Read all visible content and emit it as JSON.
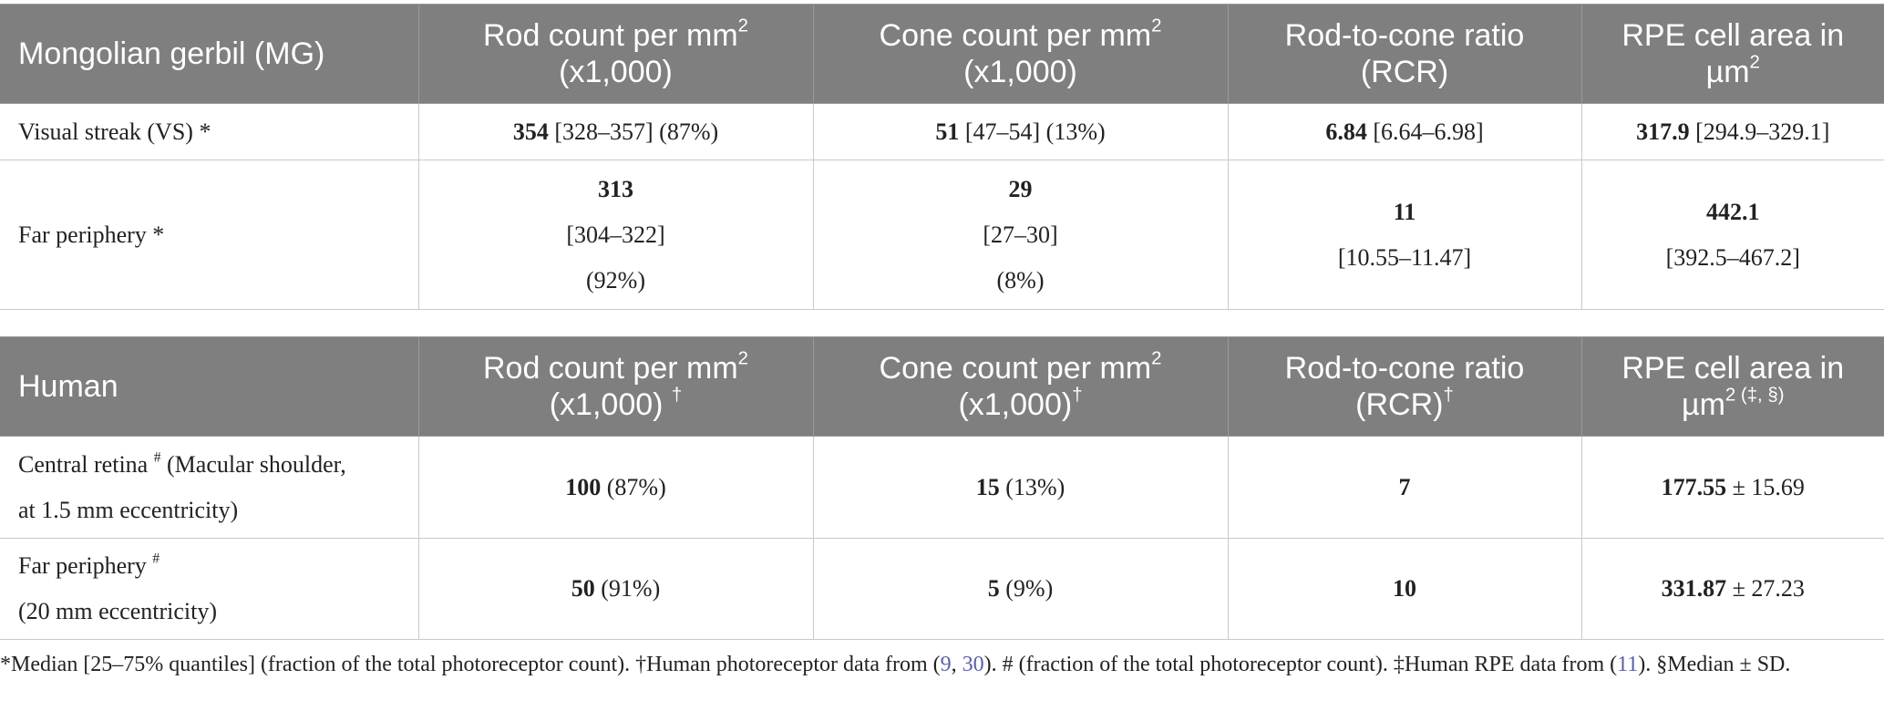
{
  "tables": [
    {
      "rows": [
        {
          "cells": [
            [
              [
                {
                  "text": "Mongolian gerbil (MG)"
                }
              ]
            ],
            [
              [
                {
                  "text": "Rod count per mm"
                },
                {
                  "text": "2",
                  "style": "sup"
                }
              ],
              [
                {
                  "text": "(x1,000)"
                }
              ]
            ],
            [
              [
                {
                  "text": "Cone count per mm"
                },
                {
                  "text": "2",
                  "style": "sup"
                }
              ],
              [
                {
                  "text": "(x1,000)"
                }
              ]
            ],
            [
              [
                {
                  "text": "Rod-to-cone ratio"
                }
              ],
              [
                {
                  "text": "(RCR)"
                }
              ]
            ],
            [
              [
                {
                  "text": "RPE cell area in"
                }
              ],
              [
                {
                  "text": "µm"
                },
                {
                  "text": "2",
                  "style": "sup"
                }
              ]
            ]
          ]
        },
        {
          "cells": [
            [
              [
                {
                  "text": "Visual streak (VS) *"
                }
              ]
            ],
            [
              [
                {
                  "text": "354",
                  "style": "bold"
                },
                {
                  "text": " [328–357] (87%)"
                }
              ]
            ],
            [
              [
                {
                  "text": "51",
                  "style": "bold"
                },
                {
                  "text": " [47–54] (13%)"
                }
              ]
            ],
            [
              [
                {
                  "text": "6.84",
                  "style": "bold"
                },
                {
                  "text": " [6.64–6.98]"
                }
              ]
            ],
            [
              [
                {
                  "text": "317.9",
                  "style": "bold"
                },
                {
                  "text": " [294.9–329.1]"
                }
              ]
            ]
          ]
        },
        {
          "cells": [
            [
              [
                {
                  "text": "Far periphery *"
                }
              ]
            ],
            [
              [
                {
                  "text": "313",
                  "style": "bold"
                }
              ],
              [
                {
                  "text": "[304–322]"
                }
              ],
              [
                {
                  "text": "(92%)"
                }
              ]
            ],
            [
              [
                {
                  "text": "29",
                  "style": "bold"
                }
              ],
              [
                {
                  "text": "[27–30]"
                }
              ],
              [
                {
                  "text": "(8%)"
                }
              ]
            ],
            [
              [
                {
                  "text": "11",
                  "style": "bold"
                }
              ],
              [
                {
                  "text": "[10.55–11.47]"
                }
              ]
            ],
            [
              [
                {
                  "text": "442.1",
                  "style": "bold"
                }
              ],
              [
                {
                  "text": "[392.5–467.2]"
                }
              ]
            ]
          ]
        }
      ]
    },
    {
      "rows": [
        {
          "cells": [
            [
              [
                {
                  "text": "Human"
                }
              ]
            ],
            [
              [
                {
                  "text": "Rod count per mm"
                },
                {
                  "text": "2",
                  "style": "sup"
                }
              ],
              [
                {
                  "text": "(x1,000) "
                },
                {
                  "text": "†",
                  "style": "sup"
                }
              ]
            ],
            [
              [
                {
                  "text": "Cone count per mm"
                },
                {
                  "text": "2",
                  "style": "sup"
                }
              ],
              [
                {
                  "text": "(x1,000)"
                },
                {
                  "text": "†",
                  "style": "sup"
                }
              ]
            ],
            [
              [
                {
                  "text": "Rod-to-cone ratio"
                }
              ],
              [
                {
                  "text": "(RCR)"
                },
                {
                  "text": "†",
                  "style": "sup"
                }
              ]
            ],
            [
              [
                {
                  "text": "RPE cell area in"
                }
              ],
              [
                {
                  "text": "µm"
                },
                {
                  "text": "2 (‡, §)",
                  "style": "sup"
                }
              ]
            ]
          ]
        },
        {
          "cells": [
            [
              [
                {
                  "text": "Central retina "
                },
                {
                  "text": "#",
                  "style": "sup"
                },
                {
                  "text": " (Macular shoulder,"
                }
              ],
              [
                {
                  "text": "at 1.5 mm eccentricity)"
                }
              ]
            ],
            [
              [
                {
                  "text": "100",
                  "style": "bold"
                },
                {
                  "text": " (87%)"
                }
              ]
            ],
            [
              [
                {
                  "text": "15",
                  "style": "bold"
                },
                {
                  "text": " (13%)"
                }
              ]
            ],
            [
              [
                {
                  "text": "7",
                  "style": "bold"
                }
              ]
            ],
            [
              [
                {
                  "text": "177.55",
                  "style": "bold"
                },
                {
                  "text": " ± 15.69"
                }
              ]
            ]
          ]
        },
        {
          "cells": [
            [
              [
                {
                  "text": "Far periphery "
                },
                {
                  "text": "#",
                  "style": "sup"
                }
              ],
              [
                {
                  "text": "(20 mm eccentricity)"
                }
              ]
            ],
            [
              [
                {
                  "text": "50",
                  "style": "bold"
                },
                {
                  "text": " (91%)"
                }
              ]
            ],
            [
              [
                {
                  "text": "5",
                  "style": "bold"
                },
                {
                  "text": " (9%)"
                }
              ]
            ],
            [
              [
                {
                  "text": "10",
                  "style": "bold"
                }
              ]
            ],
            [
              [
                {
                  "text": "331.87",
                  "style": "bold"
                },
                {
                  "text": " ± 27.23"
                }
              ]
            ]
          ]
        }
      ]
    }
  ],
  "footnote": [
    {
      "text": "*Median [25–75% quantiles] (fraction of the total photoreceptor count). †Human photoreceptor data from ("
    },
    {
      "text": "9",
      "style": "link"
    },
    {
      "text": ", "
    },
    {
      "text": "30",
      "style": "link"
    },
    {
      "text": "). # (fraction of the total photoreceptor count). ‡Human RPE data from ("
    },
    {
      "text": "11",
      "style": "link"
    },
    {
      "text": "). §Median ± SD."
    }
  ]
}
